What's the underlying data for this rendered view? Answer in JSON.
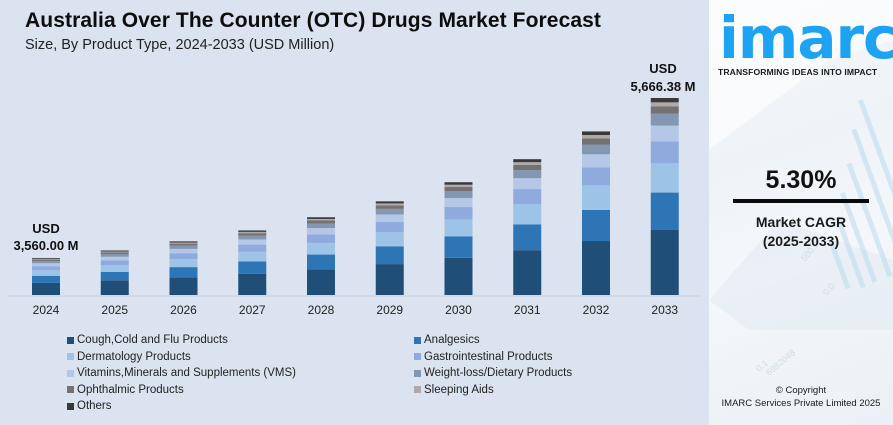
{
  "header": {
    "title": "Australia Over The Counter (OTC) Drugs Market Forecast",
    "subtitle": "Size, By Product Type, 2024-2033 (USD Million)"
  },
  "branding": {
    "logo_text": "imarc",
    "tagline": "TRANSFORMING IDEAS INTO IMPACT",
    "logo_color": "#1ea2f2"
  },
  "cagr": {
    "value": "5.30%",
    "label_line1": "Market CAGR",
    "label_line2": "(2025-2033)"
  },
  "copyright": {
    "line1": "© Copyright",
    "line2": "IMARC Services Private Limited 2025"
  },
  "annotations": {
    "first": {
      "currency": "USD",
      "value": "3,560.00 M"
    },
    "last": {
      "currency": "USD",
      "value": "5,666.38 M"
    }
  },
  "chart_data": {
    "type": "bar",
    "stacked": true,
    "title": "Australia Over The Counter (OTC) Drugs Market Forecast",
    "subtitle": "Size, By Product Type, 2024-2033 (USD Million)",
    "xlabel": "",
    "ylabel": "USD Million",
    "grid": false,
    "legend_position": "bottom",
    "categories": [
      "2024",
      "2025",
      "2026",
      "2027",
      "2028",
      "2029",
      "2030",
      "2031",
      "2032",
      "2033"
    ],
    "totals": [
      3560.0,
      3748.68,
      3947.36,
      4156.57,
      4376.87,
      4608.84,
      4853.11,
      5110.33,
      5381.18,
      5666.38
    ],
    "series": [
      {
        "name": "Cough,Cold and Flu Products",
        "color": "#1f4e79",
        "values": [
          1174.8,
          1237.1,
          1302.6,
          1371.7,
          1444.4,
          1520.9,
          1601.5,
          1686.4,
          1775.8,
          1869.9
        ]
      },
      {
        "name": "Analgesics",
        "color": "#2e75b6",
        "values": [
          676.4,
          712.2,
          750.0,
          789.7,
          831.6,
          875.7,
          922.1,
          971.0,
          1022.4,
          1076.6
        ]
      },
      {
        "name": "Dermatology Products",
        "color": "#9dc3e6",
        "values": [
          534.0,
          562.3,
          592.1,
          623.5,
          656.5,
          691.3,
          728.0,
          766.5,
          807.2,
          850.0
        ]
      },
      {
        "name": "Gastrointestinal Products",
        "color": "#8faadc",
        "values": [
          391.6,
          412.4,
          434.2,
          457.2,
          481.5,
          507.0,
          533.8,
          562.1,
          591.9,
          623.3
        ]
      },
      {
        "name": "Vitamins,Minerals and Supplements (VMS)",
        "color": "#b4c7e7",
        "values": [
          284.8,
          299.9,
          315.8,
          332.5,
          350.1,
          368.7,
          388.2,
          408.8,
          430.5,
          453.3
        ]
      },
      {
        "name": "Weight-loss/Dietary Products",
        "color": "#8497b0",
        "values": [
          213.6,
          224.9,
          236.8,
          249.4,
          262.6,
          276.5,
          291.2,
          306.6,
          322.9,
          340.0
        ]
      },
      {
        "name": "Ophthalmic Products",
        "color": "#767171",
        "values": [
          135.3,
          142.5,
          150.0,
          157.9,
          166.3,
          175.1,
          184.4,
          194.2,
          204.5,
          215.3
        ]
      },
      {
        "name": "Sleeping Aids",
        "color": "#aeaaaa",
        "values": [
          71.2,
          75.0,
          78.9,
          83.1,
          87.5,
          92.2,
          97.1,
          102.2,
          107.6,
          113.3
        ]
      },
      {
        "name": "Others",
        "color": "#3b3838",
        "values": [
          78.3,
          82.5,
          86.8,
          91.4,
          96.3,
          101.4,
          106.8,
          112.4,
          118.4,
          124.7
        ]
      }
    ],
    "data_labels": [
      {
        "category": "2024",
        "text": [
          "USD",
          "3,560.00 M"
        ]
      },
      {
        "category": "2033",
        "text": [
          "USD",
          "5,666.38 M"
        ]
      }
    ]
  }
}
